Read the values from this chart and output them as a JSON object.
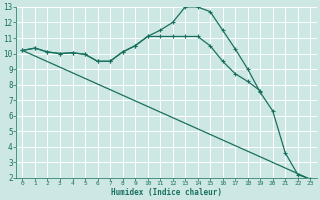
{
  "xlabel": "Humidex (Indice chaleur)",
  "bg_color": "#cde8e4",
  "grid_color": "#ffffff",
  "line_color": "#1a7060",
  "xlim": [
    -0.5,
    23.5
  ],
  "ylim": [
    2,
    13
  ],
  "xticks": [
    0,
    1,
    2,
    3,
    4,
    5,
    6,
    7,
    8,
    9,
    10,
    11,
    12,
    13,
    14,
    15,
    16,
    17,
    18,
    19,
    20,
    21,
    22,
    23
  ],
  "yticks": [
    2,
    3,
    4,
    5,
    6,
    7,
    8,
    9,
    10,
    11,
    12,
    13
  ],
  "line1_x": [
    0,
    1,
    2,
    3,
    4,
    5,
    6,
    7,
    8,
    9,
    10,
    11,
    12,
    13,
    14,
    15,
    16,
    17,
    18,
    19,
    20,
    21,
    22,
    23
  ],
  "line1_y": [
    10.2,
    10.35,
    10.1,
    10.0,
    10.05,
    9.95,
    9.5,
    9.5,
    10.1,
    10.5,
    11.1,
    11.5,
    12.0,
    13.0,
    13.0,
    12.7,
    11.5,
    10.3,
    9.0,
    7.5,
    6.3,
    3.6,
    2.2,
    1.9
  ],
  "line2_x": [
    0,
    1,
    2,
    3,
    4,
    5,
    6,
    7,
    8,
    9,
    10,
    11,
    12,
    13,
    14,
    15,
    16,
    17,
    18,
    19
  ],
  "line2_y": [
    10.2,
    10.35,
    10.1,
    10.0,
    10.05,
    9.95,
    9.5,
    9.5,
    10.1,
    10.5,
    11.1,
    11.1,
    11.1,
    11.1,
    11.1,
    10.5,
    9.5,
    8.7,
    8.2,
    7.6
  ],
  "line3_x": [
    0,
    23
  ],
  "line3_y": [
    10.2,
    1.9
  ]
}
